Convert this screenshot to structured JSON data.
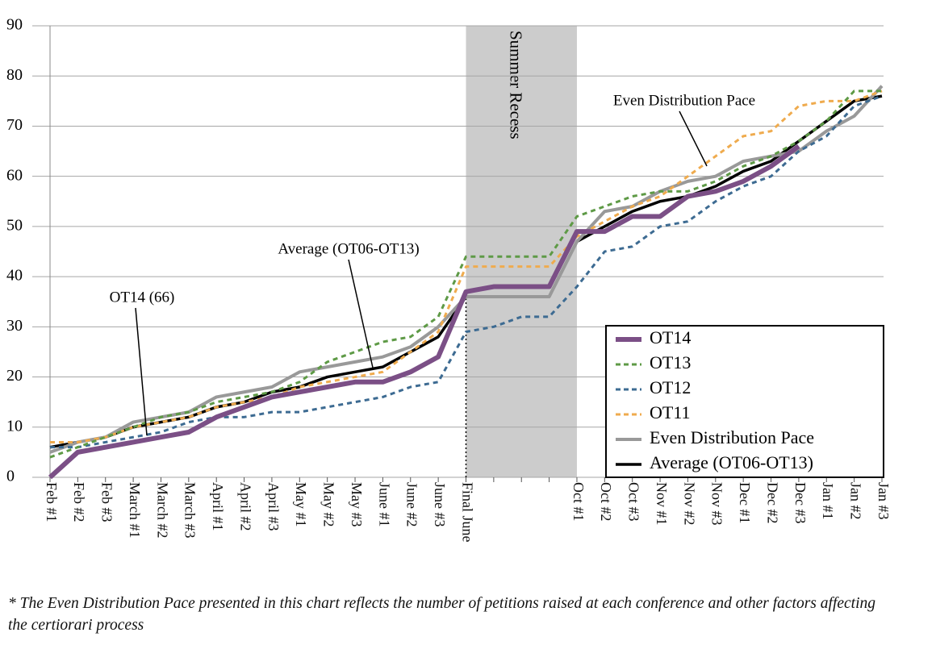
{
  "chart_data": {
    "type": "line",
    "categories": [
      "Feb #1",
      "Feb #2",
      "Feb #3",
      "March #1",
      "March #2",
      "March #3",
      "April #1",
      "April #2",
      "April #3",
      "May #1",
      "May #2",
      "May #3",
      "June #1",
      "June #2",
      "June #3",
      "Final June",
      null,
      null,
      null,
      "Oct #1",
      "Oct #2",
      "Oct #3",
      "Nov #1",
      "Nov #2",
      "Nov #3",
      "Dec #1",
      "Dec #2",
      "Dec #3",
      "Jan #1",
      "Jan #2",
      "Jan #3"
    ],
    "ylim": [
      0,
      90
    ],
    "yticks": [
      0,
      10,
      20,
      30,
      40,
      50,
      60,
      70,
      80,
      90
    ],
    "grid": true,
    "shaded_region": {
      "label": "Summer Recess",
      "from": "Final June",
      "to": "Oct #1",
      "color": "#cccccc"
    },
    "series": [
      {
        "name": "OT14",
        "color": "#7b4f86",
        "dash": false,
        "width": 6,
        "values": [
          0,
          5,
          6,
          7,
          8,
          9,
          12,
          14,
          16,
          17,
          18,
          19,
          19,
          21,
          24,
          37,
          38,
          38,
          38,
          49,
          49,
          52,
          52,
          56,
          57,
          59,
          62,
          66,
          null,
          null,
          null
        ]
      },
      {
        "name": "OT13",
        "color": "#5e9a46",
        "dash": true,
        "width": 3,
        "values": [
          4,
          6,
          8,
          10,
          12,
          13,
          15,
          16,
          17,
          19,
          23,
          25,
          27,
          28,
          32,
          44,
          44,
          44,
          44,
          52,
          54,
          56,
          57,
          57,
          59,
          62,
          64,
          67,
          71,
          77,
          77
        ]
      },
      {
        "name": "OT12",
        "color": "#3d6b92",
        "dash": true,
        "width": 3,
        "values": [
          6,
          6,
          7,
          8,
          9,
          11,
          12,
          12,
          13,
          13,
          14,
          15,
          16,
          18,
          19,
          29,
          30,
          32,
          32,
          38,
          45,
          46,
          50,
          51,
          55,
          58,
          60,
          65,
          68,
          74,
          76
        ]
      },
      {
        "name": "OT11",
        "color": "#efab4e",
        "dash": true,
        "width": 3,
        "values": [
          7,
          7,
          8,
          10,
          11,
          12,
          14,
          15,
          16,
          18,
          19,
          20,
          21,
          25,
          29,
          42,
          42,
          42,
          42,
          48,
          51,
          54,
          56,
          60,
          64,
          68,
          69,
          74,
          75,
          75,
          77
        ]
      },
      {
        "name": "Even Distribution Pace",
        "color": "#999999",
        "dash": false,
        "width": 4,
        "values": [
          5,
          7,
          8,
          11,
          12,
          13,
          16,
          17,
          18,
          21,
          22,
          23,
          24,
          26,
          30,
          36,
          36,
          36,
          36,
          47,
          53,
          54,
          57,
          59,
          60,
          63,
          64,
          65,
          69,
          72,
          78
        ]
      },
      {
        "name": "Average (OT06-OT13)",
        "color": "#000000",
        "dash": false,
        "width": 3.5,
        "values": [
          6,
          7,
          8,
          10,
          11,
          12,
          14,
          15,
          17,
          18,
          20,
          21,
          22,
          25,
          28,
          36,
          36,
          36,
          36,
          47,
          50,
          53,
          55,
          56,
          58,
          61,
          63,
          67,
          71,
          75,
          76
        ]
      }
    ],
    "annotations": [
      "Even Distribution Pace",
      "Average (OT06-OT13)",
      "OT14 (66)"
    ],
    "footnote": "* The Even Distribution Pace presented in this chart reflects the number of petitions raised at each conference and other factors affecting the certiorari process"
  }
}
